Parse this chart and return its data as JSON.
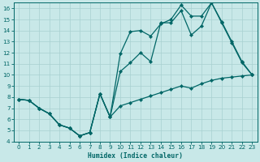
{
  "xlabel": "Humidex (Indice chaleur)",
  "ylabel": "",
  "bg_color": "#c8e8e8",
  "line_color": "#006666",
  "grid_color": "#a8d0d0",
  "xlim": [
    -0.5,
    23.5
  ],
  "ylim": [
    4,
    16.5
  ],
  "xticks": [
    0,
    1,
    2,
    3,
    4,
    5,
    6,
    7,
    8,
    9,
    10,
    11,
    12,
    13,
    14,
    15,
    16,
    17,
    18,
    19,
    20,
    21,
    22,
    23
  ],
  "yticks": [
    4,
    5,
    6,
    7,
    8,
    9,
    10,
    11,
    12,
    13,
    14,
    15,
    16
  ],
  "line_bottom_x": [
    0,
    1,
    2,
    3,
    4,
    5,
    6,
    7,
    8,
    9,
    10,
    11,
    12,
    13,
    14,
    15,
    16,
    17,
    18,
    19,
    20,
    21,
    22,
    23
  ],
  "line_bottom_y": [
    7.8,
    7.7,
    7.0,
    6.5,
    5.5,
    5.2,
    4.5,
    4.8,
    8.3,
    6.2,
    7.2,
    7.5,
    7.8,
    8.1,
    8.4,
    8.7,
    9.0,
    8.8,
    9.2,
    9.5,
    9.7,
    9.8,
    9.9,
    10.0
  ],
  "line_mid_x": [
    0,
    1,
    2,
    3,
    4,
    5,
    6,
    7,
    8,
    9,
    10,
    11,
    12,
    13,
    14,
    15,
    16,
    17,
    18,
    19,
    20,
    21,
    22,
    23
  ],
  "line_mid_y": [
    7.8,
    7.7,
    7.0,
    6.5,
    5.5,
    5.2,
    4.5,
    4.8,
    8.3,
    6.2,
    10.3,
    11.1,
    12.0,
    11.2,
    14.7,
    14.7,
    15.8,
    13.6,
    14.4,
    16.5,
    14.8,
    13.0,
    11.2,
    10.0
  ],
  "line_top_x": [
    0,
    1,
    2,
    3,
    4,
    5,
    6,
    7,
    8,
    9,
    10,
    11,
    12,
    13,
    14,
    15,
    16,
    17,
    18,
    19,
    20,
    21,
    22,
    23
  ],
  "line_top_y": [
    7.8,
    7.7,
    7.0,
    6.5,
    5.5,
    5.2,
    4.5,
    4.8,
    8.3,
    6.2,
    11.9,
    13.9,
    14.0,
    13.5,
    14.6,
    15.0,
    16.3,
    15.3,
    15.3,
    16.5,
    14.7,
    12.9,
    11.1,
    10.0
  ]
}
